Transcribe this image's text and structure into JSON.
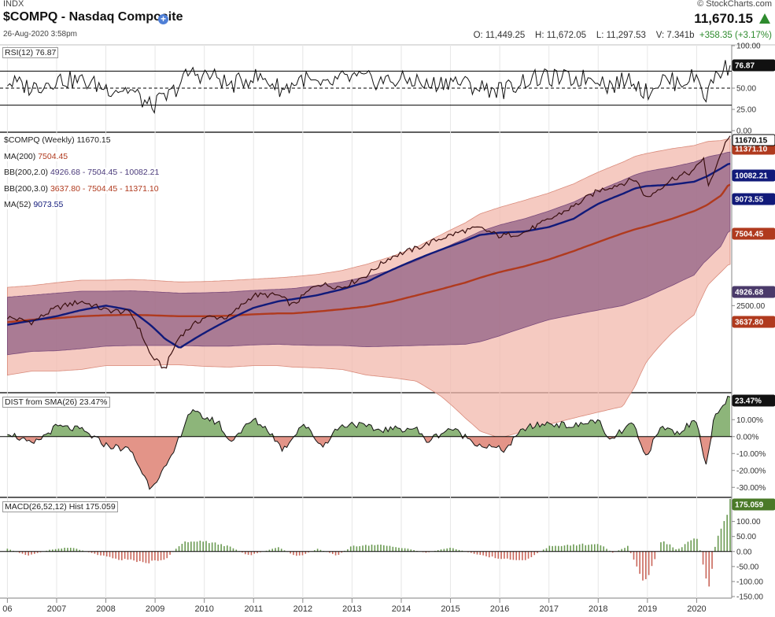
{
  "header": {
    "exchange": "INDX",
    "symbol_title": "$COMPQ - Nasdaq Composite",
    "datetime": "26-Aug-2020 3:58pm",
    "watermark": "© StockCharts.com",
    "last_price": "11,670.15",
    "open": "O: 11,449.25",
    "high": "H: 11,672.05",
    "low": "L: 11,297.53",
    "volume": "V: 7.341b",
    "change": "+358.35 (+3.17%)"
  },
  "panels": {
    "rsi": {
      "label": "RSI(12) 76.87",
      "tag": "76.87",
      "ticks": [
        "100.00",
        "75.00",
        "50.00",
        "25.00",
        "0.00"
      ]
    },
    "price": {
      "labels": [
        "$COMPQ (Weekly) 11670.15",
        "MA(200) 7504.45",
        "BB(200,2.0) 4926.68 - 7504.45 - 10082.21",
        "BB(200,3.0) 3637.80 - 7504.45 - 11371.10",
        "MA(52) 9073.55"
      ],
      "ma200_prefix": "MA(200) ",
      "ma200_value": "7504.45",
      "bb2_prefix": "BB(200,2.0) ",
      "bb2_value": "4926.68 - 7504.45 - 10082.21",
      "bb3_prefix": "BB(200,3.0) ",
      "bb3_value": "3637.80 - 7504.45 - 11371.10",
      "ma52_prefix": "MA(52) ",
      "ma52_value": "9073.55",
      "tags": [
        "11670.15",
        "11371.10",
        "10082.21",
        "9073.55",
        "7504.45",
        "4926.68",
        "3637.80"
      ],
      "tick": "2500.00"
    },
    "dist": {
      "label": "DIST from SMA(26) 23.47%",
      "tag": "23.47%",
      "ticks": [
        "10.00%",
        "0.00%",
        "-10.00%",
        "-20.00%",
        "-30.00%"
      ]
    },
    "macd": {
      "label": "MACD(26,52,12) Hist 175.059",
      "tag": "175.059",
      "ticks": [
        "150.00",
        "100.00",
        "50.00",
        "0.00",
        "-50.00",
        "-100.00",
        "-150.00"
      ]
    }
  },
  "x_axis": [
    "06",
    "2007",
    "2008",
    "2009",
    "2010",
    "2011",
    "2012",
    "2013",
    "2014",
    "2015",
    "2016",
    "2017",
    "2018",
    "2019",
    "2020"
  ],
  "colors": {
    "price": "#3a0f0f",
    "ma200": "#b03a1e",
    "ma52": "#111a7a",
    "bb2_fill": "#8a5a80",
    "bb3_fill": "#f2b8ac",
    "dist_pos": "#8db57a",
    "dist_neg": "#e39488",
    "green_tag": "#4a7a28"
  },
  "chart_data": {
    "type": "line",
    "title": "$COMPQ - Nasdaq Composite",
    "frequency": "weekly",
    "x": [
      2006.0,
      2006.5,
      2007.0,
      2007.5,
      2008.0,
      2008.5,
      2008.9,
      2009.2,
      2009.5,
      2010.0,
      2010.5,
      2011.0,
      2011.5,
      2011.8,
      2012.3,
      2012.8,
      2013.3,
      2013.8,
      2014.3,
      2014.8,
      2015.3,
      2015.6,
      2016.0,
      2016.5,
      2017.0,
      2017.5,
      2018.0,
      2018.5,
      2018.75,
      2018.98,
      2019.5,
      2019.95,
      2020.15,
      2020.22,
      2020.5,
      2020.65
    ],
    "series": [
      {
        "name": "$COMPQ (Weekly)",
        "values": [
          2250,
          2150,
          2450,
          2600,
          2400,
          2350,
          1600,
          1400,
          1900,
          2250,
          2250,
          2750,
          2750,
          2500,
          3050,
          2950,
          3300,
          3900,
          4200,
          4600,
          4950,
          5050,
          4700,
          4850,
          5450,
          6150,
          7100,
          7600,
          7900,
          6600,
          7900,
          8500,
          9700,
          7100,
          10000,
          11670
        ]
      },
      {
        "name": "MA(200)",
        "values": [
          2150,
          2200,
          2230,
          2270,
          2290,
          2300,
          2290,
          2280,
          2270,
          2270,
          2280,
          2310,
          2330,
          2330,
          2370,
          2420,
          2480,
          2590,
          2740,
          2900,
          3080,
          3220,
          3390,
          3570,
          3800,
          4100,
          4450,
          4820,
          5000,
          5130,
          5500,
          5900,
          6150,
          6250,
          6800,
          7504
        ]
      },
      {
        "name": "MA(52)",
        "values": [
          2100,
          2180,
          2270,
          2400,
          2500,
          2400,
          2100,
          1850,
          1700,
          1950,
          2200,
          2450,
          2600,
          2650,
          2750,
          2900,
          3100,
          3450,
          3800,
          4150,
          4500,
          4750,
          4850,
          4900,
          5100,
          5500,
          6300,
          6900,
          7250,
          7400,
          7500,
          7700,
          8000,
          8100,
          8700,
          9073
        ]
      },
      {
        "name": "BB(200,2.0) upper",
        "values": [
          2700,
          2750,
          2800,
          2850,
          2850,
          2860,
          2840,
          2820,
          2800,
          2810,
          2830,
          2870,
          2900,
          2920,
          3000,
          3100,
          3250,
          3450,
          3750,
          4150,
          4600,
          4900,
          5200,
          5500,
          5900,
          6400,
          7100,
          7800,
          8200,
          8450,
          8800,
          9200,
          9500,
          9650,
          9900,
          10082
        ]
      },
      {
        "name": "BB(200,2.0) lower",
        "values": [
          1600,
          1650,
          1660,
          1690,
          1730,
          1740,
          1740,
          1740,
          1740,
          1730,
          1730,
          1750,
          1760,
          1750,
          1740,
          1740,
          1720,
          1730,
          1740,
          1750,
          1760,
          1800,
          1900,
          2050,
          2200,
          2300,
          2400,
          2500,
          2600,
          2700,
          3000,
          3300,
          3700,
          3800,
          4300,
          4926
        ]
      },
      {
        "name": "BB(200,3.0) upper",
        "values": [
          2950,
          3000,
          3080,
          3150,
          3150,
          3170,
          3150,
          3120,
          3100,
          3110,
          3140,
          3180,
          3220,
          3250,
          3320,
          3440,
          3640,
          3900,
          4240,
          4750,
          5300,
          5750,
          6100,
          6500,
          6950,
          7550,
          8400,
          9200,
          9700,
          9950,
          10400,
          10700,
          11000,
          11100,
          11200,
          11371
        ]
      },
      {
        "name": "BB(200,3.0) lower",
        "values": [
          1330,
          1380,
          1380,
          1400,
          1450,
          1450,
          1450,
          1460,
          1460,
          1440,
          1430,
          1450,
          1450,
          1430,
          1420,
          1400,
          1330,
          1300,
          1260,
          1100,
          900,
          800,
          750,
          800,
          850,
          900,
          950,
          1000,
          1200,
          1500,
          1950,
          2300,
          2800,
          3000,
          3400,
          3637
        ]
      }
    ],
    "rsi": {
      "label": "RSI(12)",
      "last": 76.87,
      "ylim": [
        0,
        100
      ],
      "levels": [
        30,
        50,
        70
      ]
    },
    "dist_sma26": {
      "label": "DIST from SMA(26)",
      "last": 23.47,
      "units": "%",
      "ylim": [
        -35,
        25
      ],
      "x": [
        2006.0,
        2006.5,
        2007.0,
        2007.5,
        2008.0,
        2008.5,
        2008.9,
        2009.3,
        2009.7,
        2010.3,
        2010.5,
        2011.0,
        2011.3,
        2011.6,
        2012.0,
        2012.4,
        2012.7,
        2013.0,
        2013.5,
        2014.3,
        2014.5,
        2015.0,
        2015.6,
        2016.1,
        2016.5,
        2017.0,
        2017.5,
        2018.0,
        2018.2,
        2018.7,
        2018.95,
        2019.3,
        2019.6,
        2020.0,
        2020.2,
        2020.35,
        2020.65
      ],
      "values": [
        3,
        -5,
        6,
        4,
        -5,
        -8,
        -30,
        -15,
        15,
        8,
        -3,
        10,
        4,
        -8,
        8,
        -6,
        5,
        8,
        4,
        5,
        -3,
        5,
        -5,
        -8,
        5,
        8,
        6,
        10,
        -3,
        8,
        -12,
        6,
        2,
        10,
        -18,
        10,
        23.47
      ]
    },
    "macd_hist": {
      "label": "MACD(26,52,12) Hist",
      "last": 175.059,
      "ylim": [
        -150,
        175
      ],
      "x": [
        2006.0,
        2006.4,
        2006.9,
        2007.3,
        2007.8,
        2008.1,
        2008.5,
        2008.9,
        2009.2,
        2009.6,
        2010.1,
        2010.5,
        2010.9,
        2011.5,
        2011.9,
        2012.3,
        2012.7,
        2013.0,
        2013.6,
        2014.0,
        2014.5,
        2015.0,
        2015.5,
        2016.1,
        2016.5,
        2017.0,
        2017.5,
        2018.0,
        2018.3,
        2018.6,
        2018.95,
        2019.3,
        2019.6,
        2020.0,
        2020.25,
        2020.4,
        2020.65
      ],
      "values": [
        10,
        -15,
        8,
        15,
        -10,
        -25,
        -35,
        -40,
        -30,
        40,
        35,
        20,
        -15,
        15,
        -20,
        10,
        -15,
        20,
        25,
        15,
        -5,
        15,
        -10,
        -30,
        -35,
        20,
        25,
        30,
        -5,
        20,
        -130,
        45,
        5,
        60,
        -140,
        50,
        175.059
      ]
    }
  }
}
